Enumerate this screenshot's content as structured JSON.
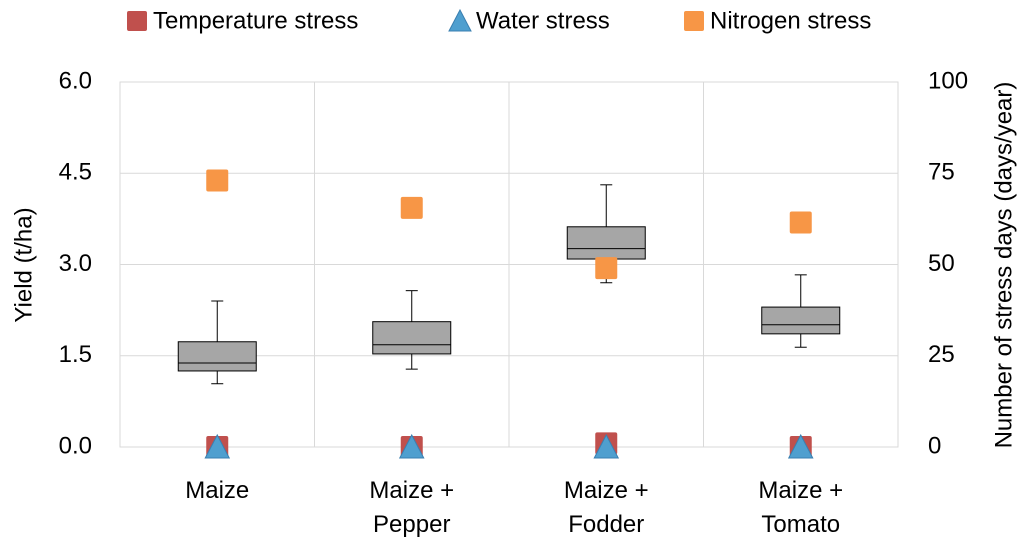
{
  "chart_data": {
    "type": "box",
    "y_label": "Yield (t/ha)",
    "y2_label": "Number of stress days (days/year)",
    "categories": [
      "Maize",
      "Maize + Pepper",
      "Maize + Fodder",
      "Maize + Tomato"
    ],
    "boxes": [
      {
        "min": 1.04,
        "q1": 1.25,
        "median": 1.38,
        "q3": 1.73,
        "max": 2.4
      },
      {
        "min": 1.28,
        "q1": 1.53,
        "median": 1.68,
        "q3": 2.06,
        "max": 2.57
      },
      {
        "min": 2.7,
        "q1": 3.09,
        "median": 3.26,
        "q3": 3.62,
        "max": 4.31
      },
      {
        "min": 1.64,
        "q1": 1.86,
        "median": 2.01,
        "q3": 2.3,
        "max": 2.83
      }
    ],
    "box_color": "#a6a6a6",
    "series": [
      {
        "name": "Temperature stress",
        "color": "#c0504d",
        "marker": "square",
        "axis": "y2",
        "values": [
          0,
          0,
          1,
          0
        ]
      },
      {
        "name": "Water stress",
        "color": "#4f9fcf",
        "marker": "triangle",
        "axis": "y2",
        "values": [
          0,
          0,
          0,
          0
        ]
      },
      {
        "name": "Nitrogen stress",
        "color": "#f79646",
        "marker": "square",
        "axis": "y2",
        "values": [
          73,
          65.5,
          49,
          61.5
        ]
      }
    ],
    "ylim": [
      0,
      6
    ],
    "yticks": [
      {
        "value": 0,
        "label": "0.0"
      },
      {
        "value": 1.5,
        "label": "1.5"
      },
      {
        "value": 3,
        "label": "3.0"
      },
      {
        "value": 4.5,
        "label": "4.5"
      },
      {
        "value": 6,
        "label": "6.0"
      }
    ],
    "y2lim": [
      0,
      100
    ],
    "y2ticks": [
      0,
      25,
      50,
      75,
      100
    ],
    "grid": true,
    "legend": "top"
  }
}
